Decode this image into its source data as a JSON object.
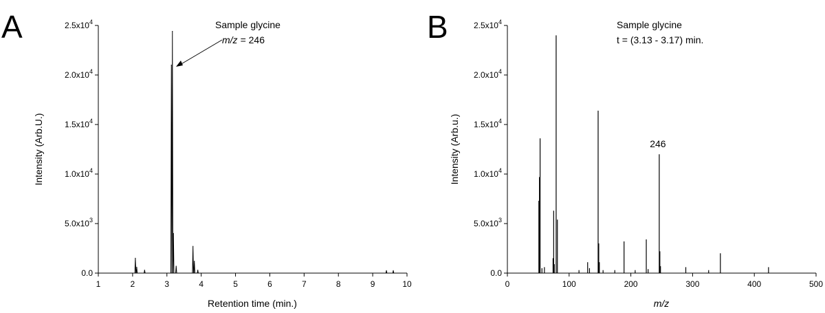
{
  "chart_data": [
    {
      "panel_label": "A",
      "type": "line",
      "xlabel": "Retention time (min.)",
      "ylabel": "Intensity (Arb.U.)",
      "xlim": [
        1,
        10
      ],
      "ylim": [
        0,
        25000
      ],
      "x_ticks": [
        "1",
        "2",
        "3",
        "4",
        "5",
        "6",
        "7",
        "8",
        "9",
        "10"
      ],
      "y_ticks": [
        {
          "base": "0.0",
          "exp": ""
        },
        {
          "base": "5.0x10",
          "exp": "3"
        },
        {
          "base": "1.0x10",
          "exp": "4"
        },
        {
          "base": "1.5x10",
          "exp": "4"
        },
        {
          "base": "2.0x10",
          "exp": "4"
        },
        {
          "base": "2.5x10",
          "exp": "4"
        }
      ],
      "grid": false,
      "annotation": {
        "line1": "Sample glycine",
        "mz_label": "m/z",
        "mz_value": "= 246",
        "arrow_target_x": 3.18,
        "arrow_target_y": 21200
      },
      "peaks": [
        {
          "x": 2.08,
          "y": 1500
        },
        {
          "x": 2.12,
          "y": 600
        },
        {
          "x": 2.35,
          "y": 300
        },
        {
          "x": 3.13,
          "y": 21000
        },
        {
          "x": 3.16,
          "y": 24400
        },
        {
          "x": 3.19,
          "y": 4000
        },
        {
          "x": 3.27,
          "y": 700
        },
        {
          "x": 3.76,
          "y": 2700
        },
        {
          "x": 3.8,
          "y": 1200
        },
        {
          "x": 3.9,
          "y": 300
        },
        {
          "x": 9.4,
          "y": 250
        },
        {
          "x": 9.6,
          "y": 250
        }
      ]
    },
    {
      "panel_label": "B",
      "type": "bar",
      "xlabel": "m/z",
      "ylabel": "Intensity (Arb.u.)",
      "xlim": [
        0,
        500
      ],
      "ylim": [
        0,
        25000
      ],
      "x_ticks": [
        "0",
        "100",
        "200",
        "300",
        "400",
        "500"
      ],
      "y_ticks": [
        {
          "base": "0.0",
          "exp": ""
        },
        {
          "base": "5.0x10",
          "exp": "3"
        },
        {
          "base": "1.0x10",
          "exp": "4"
        },
        {
          "base": "1.5x10",
          "exp": "4"
        },
        {
          "base": "2.0x10",
          "exp": "4"
        },
        {
          "base": "2.5x10",
          "exp": "4"
        }
      ],
      "grid": false,
      "annotation": {
        "line1": "Sample glycine",
        "line2": "t = (3.13 - 3.17) min."
      },
      "peak_label": {
        "text": "246",
        "x": 246,
        "y": 12000
      },
      "peaks": [
        {
          "x": 51,
          "y": 7300
        },
        {
          "x": 52,
          "y": 9700
        },
        {
          "x": 53,
          "y": 13600
        },
        {
          "x": 56,
          "y": 500
        },
        {
          "x": 60,
          "y": 600
        },
        {
          "x": 74,
          "y": 1500
        },
        {
          "x": 75,
          "y": 6300
        },
        {
          "x": 76,
          "y": 900
        },
        {
          "x": 79,
          "y": 24000
        },
        {
          "x": 81,
          "y": 5400
        },
        {
          "x": 116,
          "y": 300
        },
        {
          "x": 130,
          "y": 1100
        },
        {
          "x": 133,
          "y": 500
        },
        {
          "x": 147,
          "y": 16400
        },
        {
          "x": 148,
          "y": 3000
        },
        {
          "x": 149,
          "y": 1100
        },
        {
          "x": 155,
          "y": 300
        },
        {
          "x": 174,
          "y": 300
        },
        {
          "x": 189,
          "y": 3200
        },
        {
          "x": 207,
          "y": 300
        },
        {
          "x": 225,
          "y": 3400
        },
        {
          "x": 228,
          "y": 400
        },
        {
          "x": 246,
          "y": 12000
        },
        {
          "x": 247,
          "y": 2200
        },
        {
          "x": 248,
          "y": 700
        },
        {
          "x": 289,
          "y": 600
        },
        {
          "x": 326,
          "y": 300
        },
        {
          "x": 345,
          "y": 2000
        },
        {
          "x": 423,
          "y": 600
        }
      ]
    }
  ]
}
